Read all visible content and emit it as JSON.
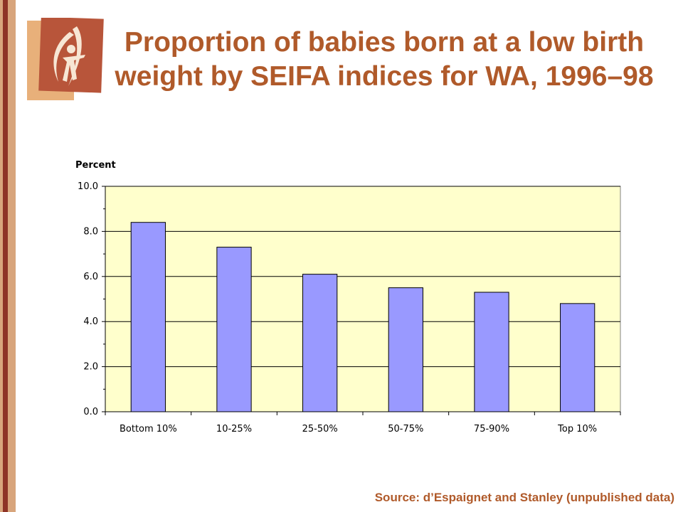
{
  "title": "Proportion of babies born at a low birth weight by SEIFA indices for WA, 1996–98",
  "source": "Source: d’Espaignet and Stanley (unpublished data)",
  "colors": {
    "title": "#b05a2a",
    "bar": "#9999ff",
    "plot_bg": "#ffffcc",
    "stripe_dark": "#8e3326",
    "stripe_tan": "#d8a57c"
  },
  "chart_data": {
    "type": "bar",
    "ylabel": "Percent",
    "xlabel": "",
    "categories": [
      "Bottom 10%",
      "10-25%",
      "25-50%",
      "50-75%",
      "75-90%",
      "Top 10%"
    ],
    "values": [
      8.4,
      7.3,
      6.1,
      5.5,
      5.3,
      4.8
    ],
    "ylim": [
      0,
      10
    ],
    "yticks": [
      "0.0",
      "2.0",
      "4.0",
      "6.0",
      "8.0",
      "10.0"
    ],
    "grid": true,
    "legend": "none"
  }
}
